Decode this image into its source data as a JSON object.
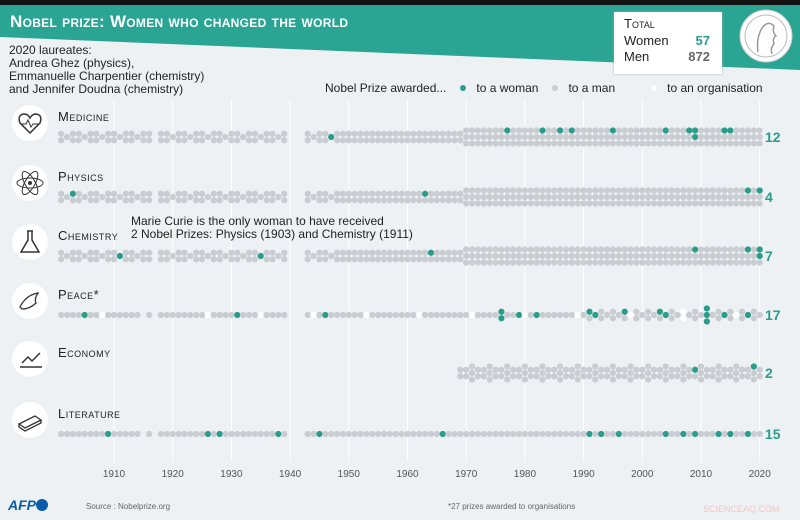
{
  "header": {
    "title": "Nobel prize: Women who changed the world"
  },
  "laureates_note": "2020 laureates:\nAndrea Ghez (physics),\nEmmanuelle Charpentier (chemistry)\nand Jennifer Doudna (chemistry)",
  "totals": {
    "title": "Total",
    "women_label": "Women",
    "women": "57",
    "men_label": "Men",
    "men": "872"
  },
  "legend": {
    "prefix": "Nobel Prize awarded...",
    "woman": "to a woman",
    "man": "to a man",
    "organisation": "to an organisation"
  },
  "colors": {
    "woman": "#2a9d8a",
    "man": "#c9ccd0",
    "organisation": "#ffffff",
    "band": "#2aa593"
  },
  "annotation": "Marie Curie is the only woman to have received\n2 Nobel Prizes: Physics (1903) and Chemistry (1911)",
  "footer": {
    "logo": "AFP",
    "source": "Source : Nobelprize.org",
    "note": "*27 prizes awarded to organisations",
    "watermark": "SCIENCEAQ.COM"
  },
  "chart_data": {
    "type": "scatter",
    "x_ticks": [
      "1910",
      "1920",
      "1930",
      "1940",
      "1950",
      "1960",
      "1970",
      "1980",
      "1990",
      "2000",
      "2010",
      "2020"
    ],
    "xlim": [
      1901,
      2020
    ],
    "categories": [
      {
        "name": "Medicine",
        "icon": "heart-icon",
        "start_year": 1901,
        "women_count": "12",
        "women_years": [
          1947,
          1977,
          1983,
          1986,
          1988,
          1995,
          2004,
          2008,
          2009,
          2009,
          2014,
          2015
        ]
      },
      {
        "name": "Physics",
        "icon": "atom-icon",
        "start_year": 1901,
        "women_count": "4",
        "women_years": [
          1903,
          1963,
          2018,
          2020
        ]
      },
      {
        "name": "Chemistry",
        "icon": "flask-icon",
        "start_year": 1901,
        "women_count": "7",
        "women_years": [
          1911,
          1935,
          1964,
          2009,
          2018,
          2020,
          2020
        ]
      },
      {
        "name": "Peace*",
        "icon": "dove-icon",
        "start_year": 1901,
        "women_count": "17",
        "women_years": [
          1905,
          1931,
          1946,
          1976,
          1976,
          1979,
          1982,
          1991,
          1992,
          1997,
          2003,
          2004,
          2011,
          2011,
          2011,
          2014,
          2018
        ]
      },
      {
        "name": "Economy",
        "icon": "chart-icon",
        "start_year": 1969,
        "women_count": "2",
        "women_years": [
          2009,
          2019
        ]
      },
      {
        "name": "Literature",
        "icon": "book-icon",
        "start_year": 1901,
        "women_count": "15",
        "women_years": [
          1909,
          1926,
          1928,
          1938,
          1945,
          1966,
          1991,
          1993,
          1996,
          2004,
          2007,
          2009,
          2013,
          2015,
          2018
        ]
      }
    ]
  }
}
